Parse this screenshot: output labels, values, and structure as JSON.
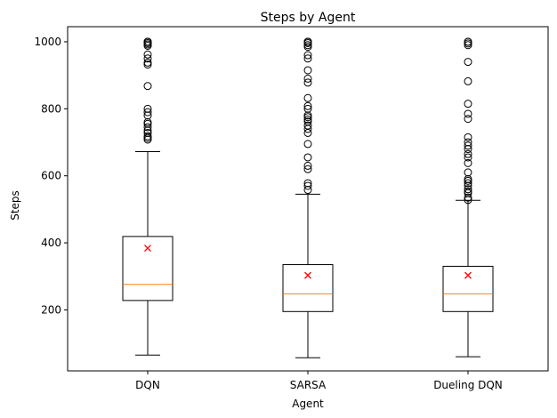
{
  "chart_data": {
    "type": "box",
    "title": "Steps by Agent",
    "xlabel": "Agent",
    "ylabel": "Steps",
    "ylim": [
      18,
      1045
    ],
    "yticks": [
      200,
      400,
      600,
      800,
      1000
    ],
    "grid": false,
    "legend": "none",
    "colors": {
      "median": "#ff7f0e",
      "mean": "#ff0000",
      "box": "#000000"
    },
    "categories": [
      "DQN",
      "SARSA",
      "Dueling DQN"
    ],
    "boxes": [
      {
        "name": "DQN",
        "whisker_low": 65,
        "q1": 228,
        "median": 276,
        "q3": 419,
        "whisker_high": 672,
        "mean": 384,
        "outliers": [
          708,
          713,
          718,
          728,
          735,
          745,
          755,
          760,
          780,
          790,
          800,
          868,
          932,
          938,
          950,
          962,
          988,
          992,
          996,
          1000,
          1000,
          1000
        ]
      },
      {
        "name": "SARSA",
        "whisker_low": 57,
        "q1": 195,
        "median": 248,
        "q3": 335,
        "whisker_high": 545,
        "mean": 303,
        "outliers": [
          558,
          570,
          578,
          620,
          630,
          655,
          695,
          728,
          740,
          750,
          762,
          768,
          775,
          780,
          800,
          808,
          832,
          878,
          890,
          915,
          950,
          960,
          985,
          990,
          996,
          1000,
          1000,
          1000
        ]
      },
      {
        "name": "Dueling DQN",
        "whisker_low": 60,
        "q1": 195,
        "median": 248,
        "q3": 330,
        "whisker_high": 527,
        "mean": 303,
        "outliers": [
          528,
          535,
          548,
          553,
          560,
          570,
          578,
          585,
          590,
          610,
          638,
          655,
          665,
          680,
          690,
          700,
          715,
          770,
          785,
          815,
          882,
          940,
          990,
          995,
          1000,
          1000
        ]
      }
    ]
  }
}
